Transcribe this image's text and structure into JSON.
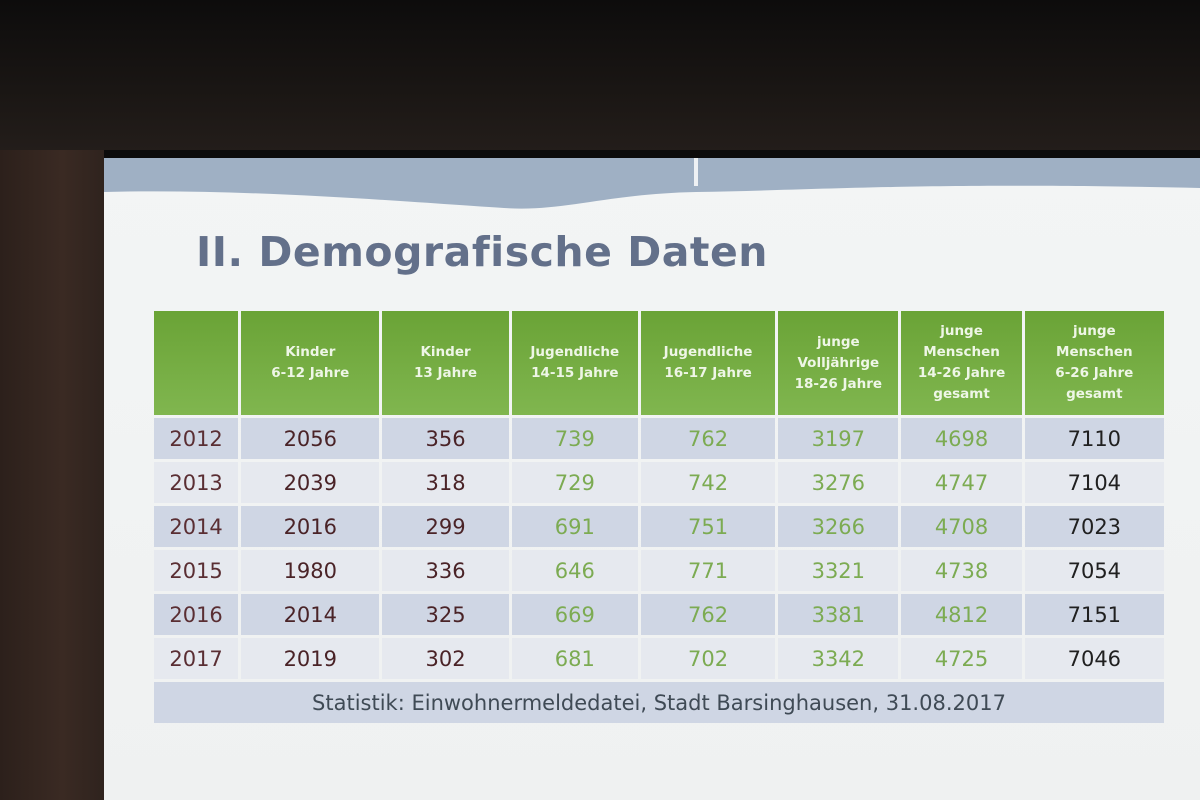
{
  "slide": {
    "title": "II. Demografische Daten",
    "source": "Statistik: Einwohnermeldedatei, Stadt Barsinghausen, 31.08.2017"
  },
  "table": {
    "headers": [
      [
        ""
      ],
      [
        "Kinder",
        "6-12 Jahre"
      ],
      [
        "Kinder",
        "13 Jahre"
      ],
      [
        "Jugendliche",
        "14-15 Jahre"
      ],
      [
        "Jugendliche",
        "16-17 Jahre"
      ],
      [
        "junge",
        "Volljährige",
        "18-26 Jahre"
      ],
      [
        "junge",
        "Menschen",
        "14-26 Jahre",
        "gesamt"
      ],
      [
        "junge",
        "Menschen",
        "6-26 Jahre",
        "gesamt"
      ]
    ],
    "rows": [
      [
        "2012",
        "2056",
        "356",
        "739",
        "762",
        "3197",
        "4698",
        "7110"
      ],
      [
        "2013",
        "2039",
        "318",
        "729",
        "742",
        "3276",
        "4747",
        "7104"
      ],
      [
        "2014",
        "2016",
        "299",
        "691",
        "751",
        "3266",
        "4708",
        "7023"
      ],
      [
        "2015",
        "1980",
        "336",
        "646",
        "771",
        "3321",
        "4738",
        "7054"
      ],
      [
        "2016",
        "2014",
        "325",
        "669",
        "762",
        "3381",
        "4812",
        "7151"
      ],
      [
        "2017",
        "2019",
        "302",
        "681",
        "702",
        "3342",
        "4725",
        "7046"
      ]
    ]
  },
  "colors": {
    "header_green": "#72a942",
    "title_slate": "#63708a",
    "row_band_blue": "#cfd6e4",
    "row_band_light": "#e6e9ef",
    "value_green": "#7cab52",
    "value_dark_red": "#4a2327"
  }
}
